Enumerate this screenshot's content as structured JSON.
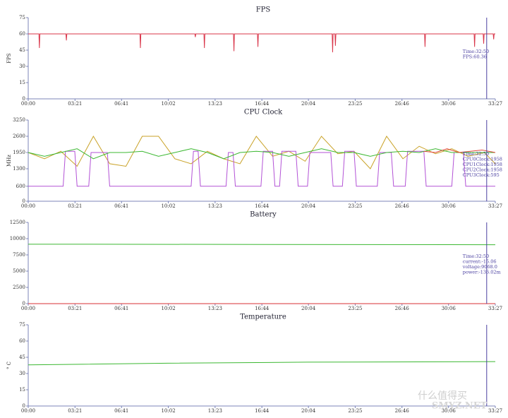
{
  "chart_data": [
    {
      "type": "line",
      "title": "FPS",
      "ylabel": "FPS",
      "xlim": [
        0,
        2007
      ],
      "xticks": [
        {
          "value": 0,
          "label": "00:00"
        },
        {
          "value": 201,
          "label": "03:21"
        },
        {
          "value": 401,
          "label": "06:41"
        },
        {
          "value": 602,
          "label": "10:02"
        },
        {
          "value": 803,
          "label": "13:23"
        },
        {
          "value": 1004,
          "label": "16:44"
        },
        {
          "value": 1204,
          "label": "20:04"
        },
        {
          "value": 1405,
          "label": "23:25"
        },
        {
          "value": 1606,
          "label": "26:46"
        },
        {
          "value": 1806,
          "label": "30:06"
        },
        {
          "value": 2007,
          "label": "33:27"
        }
      ],
      "ylim": [
        0,
        75
      ],
      "yticks": [
        0,
        15,
        30,
        45,
        60,
        75
      ],
      "series": [
        {
          "color": "#d9364a",
          "x": [
            0,
            46,
            48,
            50,
            162,
            164,
            166,
            480,
            482,
            484,
            716,
            718,
            720,
            755,
            757,
            759,
            882,
            884,
            886,
            985,
            987,
            989,
            1306,
            1308,
            1310,
            1318,
            1320,
            1322,
            1703,
            1705,
            1707,
            1916,
            1918,
            1920,
            1955,
            1957,
            1959,
            1998,
            2000,
            2002,
            2007
          ],
          "values": [
            60,
            60,
            47,
            60,
            60,
            54,
            60,
            60,
            47,
            60,
            60,
            57,
            60,
            60,
            47,
            60,
            60,
            44,
            60,
            60,
            48,
            60,
            60,
            43,
            60,
            60,
            49,
            60,
            60,
            48,
            60,
            60,
            48,
            60,
            60,
            51,
            60,
            60,
            55,
            60,
            60
          ]
        }
      ],
      "cursor": {
        "x": 1970,
        "lines": [
          "Time:32:50",
          "FPS:60.36"
        ]
      }
    },
    {
      "type": "line",
      "title": "CPU Clock",
      "ylabel": "MHz",
      "xlim": [
        0,
        2007
      ],
      "xticks": [
        {
          "value": 0,
          "label": "00:00"
        },
        {
          "value": 201,
          "label": "03:21"
        },
        {
          "value": 401,
          "label": "06:41"
        },
        {
          "value": 602,
          "label": "10:02"
        },
        {
          "value": 803,
          "label": "13:23"
        },
        {
          "value": 1004,
          "label": "16:44"
        },
        {
          "value": 1204,
          "label": "20:04"
        },
        {
          "value": 1405,
          "label": "23:25"
        },
        {
          "value": 1606,
          "label": "26:46"
        },
        {
          "value": 1806,
          "label": "30:06"
        },
        {
          "value": 2007,
          "label": "33:27"
        }
      ],
      "ylim": [
        0,
        3250
      ],
      "yticks": [
        0,
        600,
        1300,
        1950,
        2600,
        3250
      ],
      "series": [
        {
          "color": "#c9a227",
          "x": [
            0,
            70,
            140,
            210,
            280,
            350,
            420,
            490,
            560,
            630,
            700,
            770,
            840,
            910,
            980,
            1050,
            1120,
            1190,
            1260,
            1330,
            1400,
            1470,
            1540,
            1610,
            1680,
            1750,
            1820,
            1890,
            1960,
            2007
          ],
          "values": [
            1950,
            1700,
            2000,
            1400,
            2600,
            1500,
            1400,
            2600,
            2600,
            1700,
            1500,
            2000,
            1700,
            1500,
            2600,
            1800,
            2000,
            1600,
            2600,
            1900,
            2000,
            1300,
            2600,
            1700,
            2200,
            1900,
            2100,
            1800,
            1950,
            1500
          ]
        },
        {
          "color": "#b352d6",
          "x": [
            0,
            150,
            160,
            200,
            210,
            260,
            270,
            340,
            350,
            700,
            710,
            730,
            740,
            850,
            860,
            880,
            890,
            1000,
            1010,
            1050,
            1060,
            1080,
            1090,
            1150,
            1160,
            1200,
            1210,
            1300,
            1310,
            1350,
            1360,
            1400,
            1410,
            1500,
            1510,
            1560,
            1570,
            1620,
            1630,
            1700,
            1710,
            1820,
            1830,
            1870,
            1880,
            1960,
            2007
          ],
          "values": [
            600,
            600,
            2000,
            2000,
            600,
            600,
            1950,
            1950,
            600,
            600,
            2000,
            2000,
            600,
            600,
            1950,
            1950,
            600,
            600,
            2000,
            2000,
            600,
            600,
            2000,
            2000,
            600,
            600,
            1950,
            1950,
            600,
            600,
            2000,
            2000,
            600,
            600,
            1950,
            1950,
            600,
            600,
            2000,
            2000,
            600,
            600,
            1950,
            1950,
            600,
            600,
            600
          ]
        },
        {
          "color": "#3cb832",
          "x": [
            0,
            70,
            140,
            210,
            280,
            350,
            420,
            490,
            560,
            630,
            700,
            770,
            840,
            910,
            980,
            1050,
            1120,
            1190,
            1260,
            1330,
            1400,
            1470,
            1540,
            1610,
            1680,
            1750,
            1820,
            1890,
            1960,
            2007
          ],
          "values": [
            1950,
            1800,
            1950,
            2100,
            1700,
            1950,
            1950,
            2000,
            1800,
            1950,
            2100,
            1950,
            1700,
            1950,
            2000,
            1950,
            1800,
            1950,
            2100,
            1950,
            1950,
            1800,
            1950,
            2000,
            1950,
            2100,
            1950,
            1950,
            1950,
            1950
          ]
        },
        {
          "color": "#e0453a",
          "x": [
            1700,
            1750,
            1800,
            1850,
            1900,
            1950,
            2007
          ],
          "values": [
            2000,
            1950,
            2100,
            1950,
            2000,
            2050,
            1950
          ]
        }
      ],
      "cursor": {
        "x": 1970,
        "lines": [
          "Time:32:50",
          "CPU0Clock:1958",
          "CPU1Clock:1958",
          "CPU2Clock:1958",
          "CPU3Clock:595"
        ]
      }
    },
    {
      "type": "line",
      "title": "Battery",
      "xlim": [
        0,
        2007
      ],
      "xticks": [
        {
          "value": 0,
          "label": "00:00"
        },
        {
          "value": 201,
          "label": "03:21"
        },
        {
          "value": 401,
          "label": "06:41"
        },
        {
          "value": 602,
          "label": "10:02"
        },
        {
          "value": 803,
          "label": "13:23"
        },
        {
          "value": 1004,
          "label": "16:44"
        },
        {
          "value": 1204,
          "label": "20:04"
        },
        {
          "value": 1405,
          "label": "23:25"
        },
        {
          "value": 1606,
          "label": "26:46"
        },
        {
          "value": 1806,
          "label": "30:06"
        },
        {
          "value": 2007,
          "label": "33:27"
        }
      ],
      "ylim": [
        0,
        12500
      ],
      "yticks": [
        0,
        2500,
        5000,
        7500,
        10000,
        12500
      ],
      "series": [
        {
          "color": "#3cb832",
          "x": [
            0,
            2007
          ],
          "values": [
            9150,
            9068
          ]
        },
        {
          "color": "#b352d6",
          "x": [
            0,
            2007
          ],
          "values": [
            -15,
            -15
          ]
        },
        {
          "color": "#e0453a",
          "x": [
            0,
            2007
          ],
          "values": [
            -0.136,
            -0.136
          ]
        }
      ],
      "cursor": {
        "x": 1970,
        "lines": [
          "Time:32:50",
          "current:-15.06",
          "voltage:9068.0",
          "power:-136.02m"
        ]
      }
    },
    {
      "type": "line",
      "title": "Temperature",
      "ylabel": "° C",
      "xlim": [
        0,
        2007
      ],
      "xticks": [
        {
          "value": 0,
          "label": "00:00"
        },
        {
          "value": 201,
          "label": "03:21"
        },
        {
          "value": 401,
          "label": "06:41"
        },
        {
          "value": 602,
          "label": "10:02"
        },
        {
          "value": 803,
          "label": "13:23"
        },
        {
          "value": 1004,
          "label": "16:44"
        },
        {
          "value": 1204,
          "label": "20:04"
        },
        {
          "value": 1405,
          "label": "23:25"
        },
        {
          "value": 1606,
          "label": "26:46"
        },
        {
          "value": 1806,
          "label": "30:06"
        },
        {
          "value": 2007,
          "label": "33:27"
        }
      ],
      "ylim": [
        0,
        75
      ],
      "yticks": [
        0,
        15,
        30,
        45,
        60,
        75
      ],
      "series": [
        {
          "color": "#3cb832",
          "x": [
            0,
            600,
            1200,
            2007
          ],
          "values": [
            38,
            39.5,
            40.5,
            41
          ]
        }
      ],
      "cursor": {
        "x": 1970,
        "lines": []
      }
    }
  ],
  "watermark": [
    "什么值得买",
    "SMYZ.NET"
  ]
}
